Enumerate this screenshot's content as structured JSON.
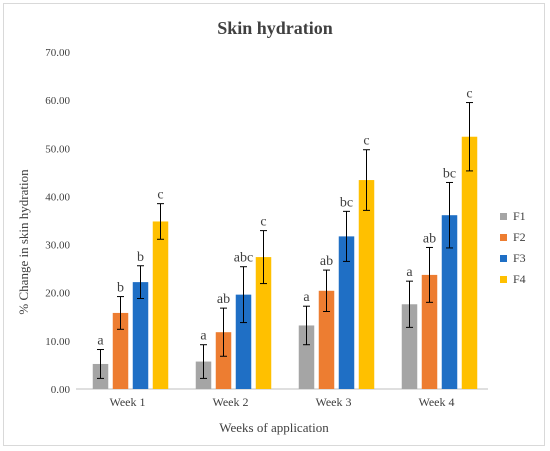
{
  "chart_data": {
    "type": "bar",
    "title": "Skin hydration",
    "xlabel": "Weeks of application",
    "ylabel": "% Change in skin hydration",
    "ylim": [
      0,
      70
    ],
    "yticks": [
      "0.00",
      "10.00",
      "20.00",
      "30.00",
      "40.00",
      "50.00",
      "60.00",
      "70.00"
    ],
    "ytick_values": [
      0,
      10,
      20,
      30,
      40,
      50,
      60,
      70
    ],
    "categories": [
      "Week 1",
      "Week 2",
      "Week 3",
      "Week 4"
    ],
    "grid": false,
    "legend_position": "right",
    "series": [
      {
        "name": "F1",
        "color": "#a5a5a5",
        "values": [
          5.2,
          5.7,
          13.2,
          17.6
        ],
        "errors": [
          3.0,
          3.5,
          4.0,
          4.8
        ],
        "labels": [
          "a",
          "a",
          "a",
          "a"
        ]
      },
      {
        "name": "F2",
        "color": "#ed7d31",
        "values": [
          15.8,
          11.8,
          20.4,
          23.7
        ],
        "errors": [
          3.4,
          5.0,
          4.3,
          5.7
        ],
        "labels": [
          "b",
          "ab",
          "ab",
          "ab"
        ]
      },
      {
        "name": "F3",
        "color": "#1f6fc5",
        "values": [
          22.2,
          19.6,
          31.7,
          36.1
        ],
        "errors": [
          3.4,
          5.8,
          5.2,
          6.8
        ],
        "labels": [
          "b",
          "abc",
          "bc",
          "bc"
        ]
      },
      {
        "name": "F4",
        "color": "#ffc000",
        "values": [
          34.8,
          27.4,
          43.4,
          52.4
        ],
        "errors": [
          3.7,
          5.5,
          6.3,
          7.1
        ],
        "labels": [
          "c",
          "c",
          "c",
          "c"
        ]
      }
    ]
  }
}
